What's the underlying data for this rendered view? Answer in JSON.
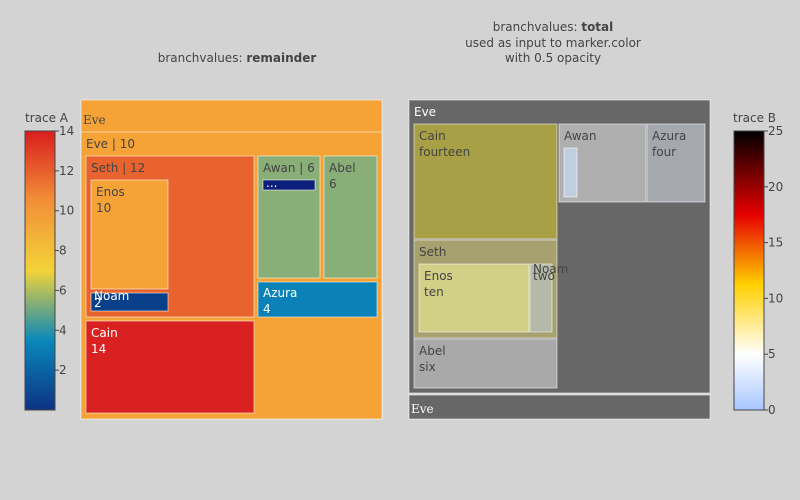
{
  "chart_data": [
    {
      "type": "treemap",
      "name": "trace A",
      "title": "branchvalues: remainder",
      "title_prefix": "branchvalues: ",
      "title_bold": "remainder",
      "branchvalues": "remainder",
      "colorscale": "Portland",
      "colorbar": {
        "title": "trace A",
        "range": [
          0,
          14
        ],
        "ticks": [
          2,
          4,
          6,
          8,
          10,
          12,
          14
        ],
        "tick_labels": [
          "2",
          "4",
          "6",
          "8",
          "10",
          "12",
          "14"
        ]
      },
      "root_label": "Eve",
      "nodes": [
        {
          "label": "Eve",
          "text": "Eve | 10",
          "value": 10
        },
        {
          "label": "Seth",
          "text": "Seth | 12",
          "value": 12
        },
        {
          "label": "Enos",
          "text": "Enos",
          "line2": "10",
          "value": 10
        },
        {
          "label": "Noam",
          "text": "Noam",
          "line2": "2",
          "value": 2
        },
        {
          "label": "Awan",
          "text": "Awan | 6",
          "value": 6
        },
        {
          "label": "Enoch",
          "text": "...",
          "value": 1
        },
        {
          "label": "Abel",
          "text": "Abel",
          "line2": "6",
          "value": 6
        },
        {
          "label": "Azura",
          "text": "Azura",
          "line2": "4",
          "value": 4
        },
        {
          "label": "Cain",
          "text": "Cain",
          "line2": "14",
          "value": 14
        }
      ],
      "colors": {
        "Eve": "#f5a236",
        "Seth": "#e8632d",
        "Enos": "#f5a236",
        "Noam": "#0a3f8a",
        "Awan": "#8aae78",
        "Enoch": "#0c1f7a",
        "Abel": "#8aae78",
        "Azura": "#0b82b7",
        "Cain": "#d92121"
      }
    },
    {
      "type": "treemap",
      "name": "trace B",
      "title_lines": [
        "used as input to marker.color",
        "with 0.5 opacity"
      ],
      "title_prefix": "branchvalues: ",
      "title_bold": "total",
      "branchvalues": "total",
      "colorscale": "Hot (reversed)",
      "opacity": 0.5,
      "colorbar": {
        "title": "trace B",
        "range": [
          0,
          25
        ],
        "ticks": [
          0,
          5,
          10,
          15,
          20,
          25
        ],
        "tick_labels": [
          "0",
          "5",
          "10",
          "15",
          "20",
          "25"
        ]
      },
      "root_label": "Eve",
      "nodes": [
        {
          "label": "Eve",
          "text": "Eve"
        },
        {
          "label": "Cain",
          "text": "Cain",
          "line2": "fourteen"
        },
        {
          "label": "Awan",
          "text": "Awan"
        },
        {
          "label": "Azura",
          "text": "Azura",
          "line2": "four"
        },
        {
          "label": "Seth",
          "text": "Seth"
        },
        {
          "label": "Enos",
          "text": "Enos",
          "line2": "ten"
        },
        {
          "label": "Noam",
          "text": "Noam",
          "line2": "two"
        },
        {
          "label": "Abel",
          "text": "Abel",
          "line2": "six"
        }
      ],
      "colors": {
        "Eve": "#676767",
        "Cain": "#a8a046",
        "Awan": "#afafaf",
        "Azura": "#a5a9af",
        "Enoch": "#c0cedf",
        "Seth": "#a7a16f",
        "Enos": "#d2cf86",
        "Noam": "#b5b9a8",
        "Abel": "#a9a9a9"
      }
    }
  ]
}
